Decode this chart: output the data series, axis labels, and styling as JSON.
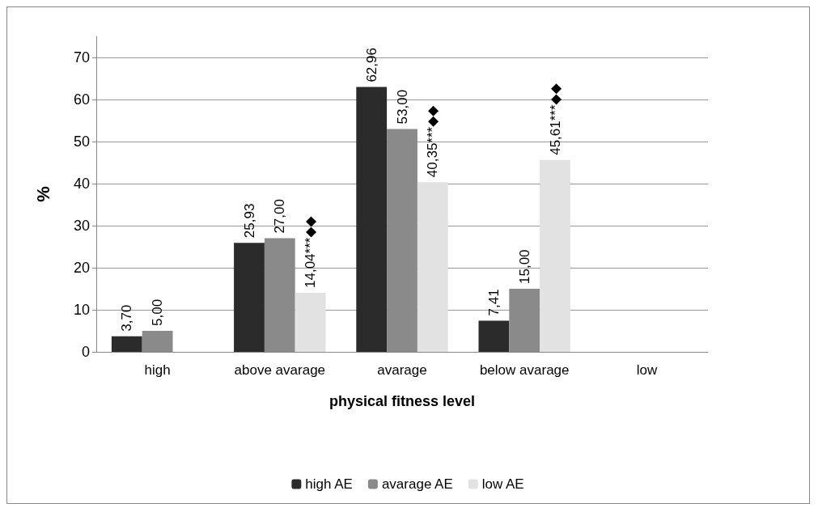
{
  "chart_data": {
    "type": "bar",
    "xlabel": "physical fitness level",
    "ylabel": "%",
    "categories": [
      "high",
      "above avarage",
      "avarage",
      "below avarage",
      "low"
    ],
    "series": [
      {
        "name": "high AE",
        "color": "#2b2b2b",
        "values": [
          3.7,
          25.93,
          62.96,
          7.41,
          null
        ],
        "value_labels": [
          "3,70",
          "25,93",
          "62,96",
          "7,41",
          null
        ]
      },
      {
        "name": "avarage AE",
        "color": "#8a8a8a",
        "values": [
          5.0,
          27.0,
          53.0,
          15.0,
          null
        ],
        "value_labels": [
          "5,00",
          "27,00",
          "53,00",
          "15,00",
          null
        ]
      },
      {
        "name": "low AE",
        "color": "#e2e2e2",
        "values": [
          null,
          14.04,
          40.35,
          45.61,
          null
        ],
        "value_labels": [
          null,
          "14,04***◆◆",
          "40,35***◆◆",
          "45,61***◆◆",
          null
        ]
      }
    ],
    "ylim": [
      0,
      75
    ],
    "yticks": [
      0,
      10,
      20,
      30,
      40,
      50,
      60,
      70
    ],
    "grid": "y",
    "legend": "bottom"
  }
}
